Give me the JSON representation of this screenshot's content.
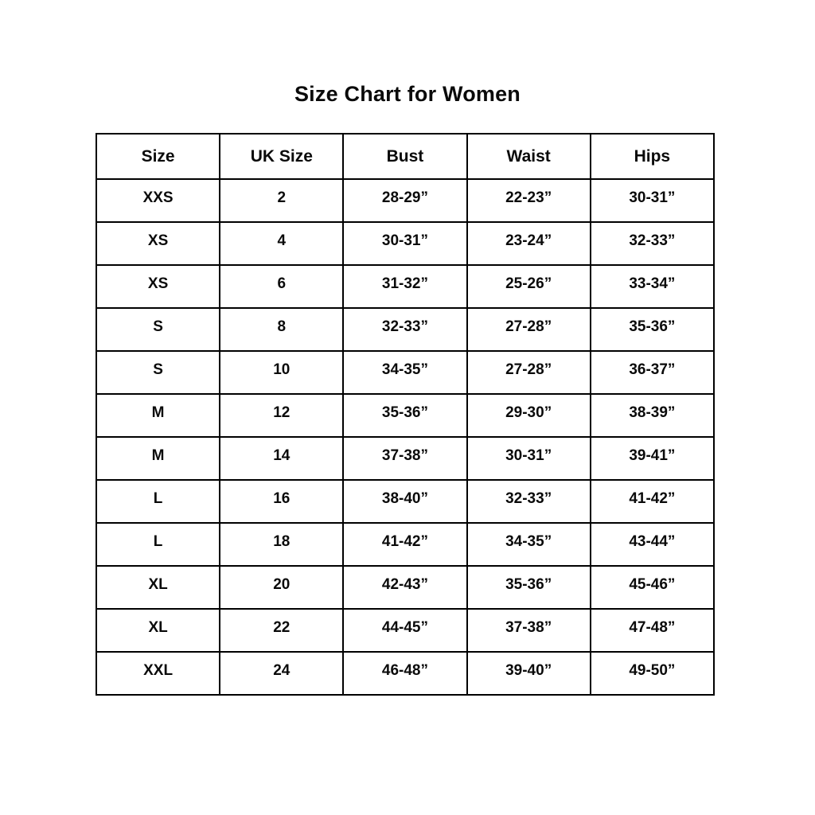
{
  "title": "Size Chart for Women",
  "chart_data": {
    "type": "table",
    "title": "Size Chart for Women",
    "columns": [
      "Size",
      "UK Size",
      "Bust",
      "Waist",
      "Hips"
    ],
    "rows": [
      [
        "XXS",
        "2",
        "28-29”",
        "22-23”",
        "30-31”"
      ],
      [
        "XS",
        "4",
        "30-31”",
        "23-24”",
        "32-33”"
      ],
      [
        "XS",
        "6",
        "31-32”",
        "25-26”",
        "33-34”"
      ],
      [
        "S",
        "8",
        "32-33”",
        "27-28”",
        "35-36”"
      ],
      [
        "S",
        "10",
        "34-35”",
        "27-28”",
        "36-37”"
      ],
      [
        "M",
        "12",
        "35-36”",
        "29-30”",
        "38-39”"
      ],
      [
        "M",
        "14",
        "37-38”",
        "30-31”",
        "39-41”"
      ],
      [
        "L",
        "16",
        "38-40”",
        "32-33”",
        "41-42”"
      ],
      [
        "L",
        "18",
        "41-42”",
        "34-35”",
        "43-44”"
      ],
      [
        "XL",
        "20",
        "42-43”",
        "35-36”",
        "45-46”"
      ],
      [
        "XL",
        "22",
        "44-45”",
        "37-38”",
        "47-48”"
      ],
      [
        "XXL",
        "24",
        "46-48”",
        "39-40”",
        "49-50”"
      ]
    ],
    "colors": {
      "text": "#0a0a0a",
      "border": "#000000",
      "background": "#ffffff"
    }
  }
}
